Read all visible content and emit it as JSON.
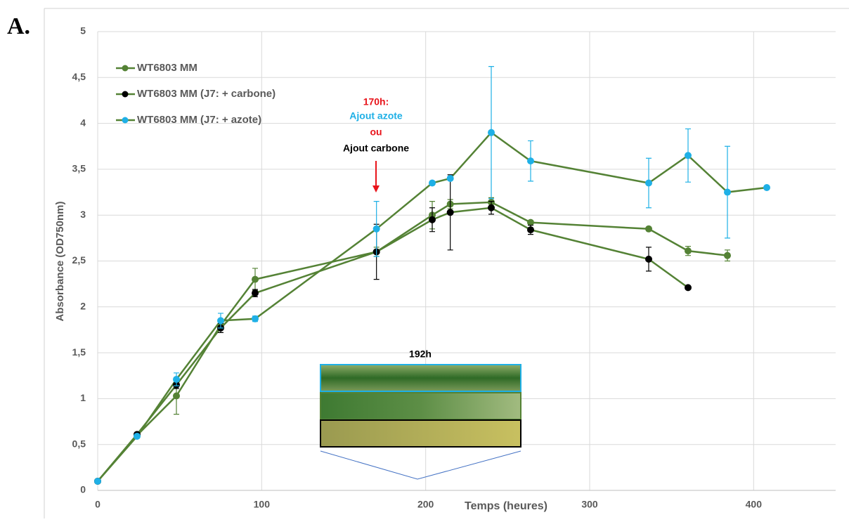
{
  "chart_data": {
    "type": "line",
    "panel_label": "A.",
    "x_label": "Temps (heures)",
    "y_label": "Absorbance (OD750nm)",
    "x": [
      0,
      24,
      48,
      75,
      96,
      170,
      204,
      215,
      240,
      264,
      336,
      360,
      384,
      408
    ],
    "line_color": "#548235",
    "series": [
      {
        "name": "WT6803 MM",
        "color": "#548235",
        "values": [
          0.1,
          0.6,
          1.03,
          1.8,
          2.3,
          2.6,
          3.0,
          3.12,
          3.14,
          2.92,
          2.85,
          2.61,
          2.56,
          null
        ],
        "errors": [
          0.01,
          0.02,
          0.2,
          0.05,
          0.12,
          0.05,
          0.15,
          0.05,
          0.05,
          0.02,
          0.02,
          0.05,
          0.06,
          null
        ]
      },
      {
        "name": "WT6803 MM (J7: + carbone)",
        "color": "#000000",
        "values": [
          0.1,
          0.61,
          1.15,
          1.77,
          2.15,
          2.6,
          2.95,
          3.03,
          3.08,
          2.84,
          2.52,
          2.21,
          null,
          null
        ],
        "errors": [
          0.01,
          0.02,
          0.04,
          0.05,
          0.04,
          0.3,
          0.13,
          0.41,
          0.07,
          0.05,
          0.13,
          0.01,
          null,
          null
        ]
      },
      {
        "name": "WT6803 MM (J7: + azote)",
        "color": "#1fb0e6",
        "values": [
          0.1,
          0.59,
          1.21,
          1.85,
          1.87,
          2.85,
          3.35,
          3.4,
          3.9,
          3.59,
          3.35,
          3.65,
          3.25,
          3.3
        ],
        "errors": [
          0.01,
          0.02,
          0.07,
          0.08,
          0.03,
          0.3,
          0.02,
          0.02,
          0.72,
          0.22,
          0.27,
          0.29,
          0.5,
          0.01
        ]
      }
    ],
    "xlim": [
      0,
      450
    ],
    "xticks": [
      0,
      100,
      200,
      300,
      400
    ],
    "ylim": [
      0,
      5
    ],
    "yticks": [
      0,
      {
        "value": 0.5,
        "label": "0,5"
      },
      1,
      {
        "value": 1.5,
        "label": "1,5"
      },
      2,
      {
        "value": 2.5,
        "label": "2,5"
      },
      3,
      {
        "value": 3.5,
        "label": "3,5"
      },
      4,
      {
        "value": 4.5,
        "label": "4,5"
      },
      5
    ],
    "grid": true,
    "legend": "upper left",
    "annotations": [
      {
        "text": "170h:",
        "color": "#e8141b"
      },
      {
        "text": "Ajout azote",
        "color": "#1fb0e6"
      },
      {
        "text": "ou",
        "color": "#e8141b"
      },
      {
        "text": "Ajout carbone",
        "color": "#000000"
      },
      {
        "text": "192h",
        "color": "#000000"
      }
    ]
  }
}
